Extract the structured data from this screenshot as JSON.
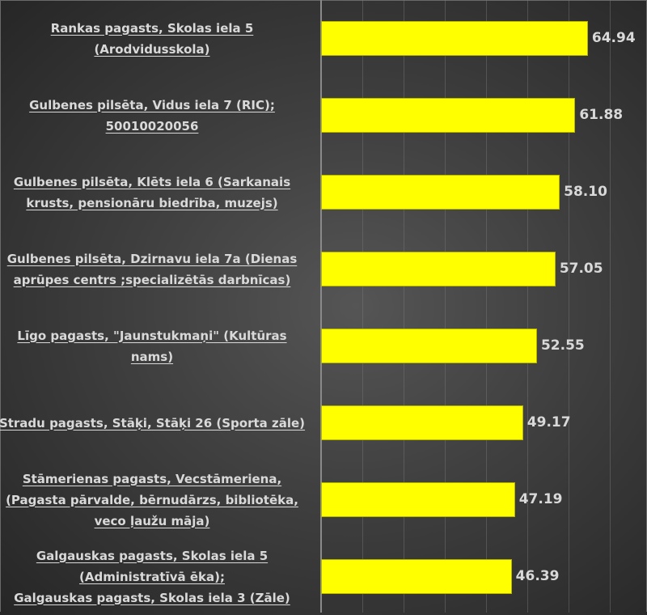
{
  "chart_data": {
    "type": "bar",
    "orientation": "horizontal",
    "title": "",
    "xlabel": "",
    "ylabel": "",
    "xlim": [
      0,
      80
    ],
    "grid": true,
    "grid_step": 10,
    "legend": null,
    "bar_color": "#ffff00",
    "background_color": "#3f3f3f",
    "label_color": "#d9d9d9",
    "categories": [
      "Rankas pagasts, Skolas iela 5 (Arodvidusskola)",
      "Gulbenes pilsēta, Vidus iela 7 (RIC); 50010020056",
      "Gulbenes pilsēta, Klēts iela 6  (Sarkanais krusts, pensionāru biedrība, muzejs)",
      "Gulbenes pilsēta, Dzirnavu iela 7a (Dienas aprūpes centrs ;specializētās darbnīcas)",
      "Līgo pagasts, \"Jaunstukmaņi\" (Kultūras nams)",
      "Stradu pagasts, Stāķi, Stāķi 26 (Sporta zāle)",
      "Stāmerienas pagasts, Vecstāmeriena, (Pagasta pārvalde, bērnudārzs, bibliotēka, veco ļaužu māja)",
      "Galgauskas pagasts, Skolas iela 5 (Administratīvā ēka); Galgauskas pagasts, Skolas iela 3 (Zāle)"
    ],
    "values": [
      64.94,
      61.88,
      58.1,
      57.05,
      52.55,
      49.17,
      47.19,
      46.39
    ],
    "data_labels": [
      "64.94",
      "61.88",
      "58.10",
      "57.05",
      "52.55",
      "49.17",
      "47.19",
      "46.39"
    ]
  },
  "rows": [
    {
      "lines": [
        "Rankas pagasts, Skolas iela 5",
        "(Arodvidusskola)"
      ],
      "value": "64.94"
    },
    {
      "lines": [
        "Gulbenes pilsēta, Vidus iela 7 (RIC);",
        "50010020056"
      ],
      "value": "61.88"
    },
    {
      "lines": [
        "Gulbenes pilsēta, Klēts iela 6  (Sarkanais",
        "krusts, pensionāru biedrība, muzejs)"
      ],
      "value": "58.10"
    },
    {
      "lines": [
        "Gulbenes pilsēta, Dzirnavu iela 7a (Dienas",
        "aprūpes centrs ;specializētās darbnīcas)"
      ],
      "value": "57.05"
    },
    {
      "lines": [
        "Līgo pagasts, \"Jaunstukmaņi\" (Kultūras",
        "nams)"
      ],
      "value": "52.55"
    },
    {
      "lines": [
        "Stradu pagasts, Stāķi, Stāķi 26 (Sporta zāle)"
      ],
      "value": "49.17"
    },
    {
      "lines": [
        "Stāmerienas pagasts, Vecstāmeriena,",
        "(Pagasta pārvalde, bērnudārzs, bibliotēka,",
        "veco ļaužu māja)"
      ],
      "value": "47.19"
    },
    {
      "lines": [
        "Galgauskas pagasts, Skolas iela 5",
        "(Administratīvā ēka);",
        "Galgauskas pagasts, Skolas iela 3 (Zāle)"
      ],
      "value": "46.39"
    }
  ]
}
